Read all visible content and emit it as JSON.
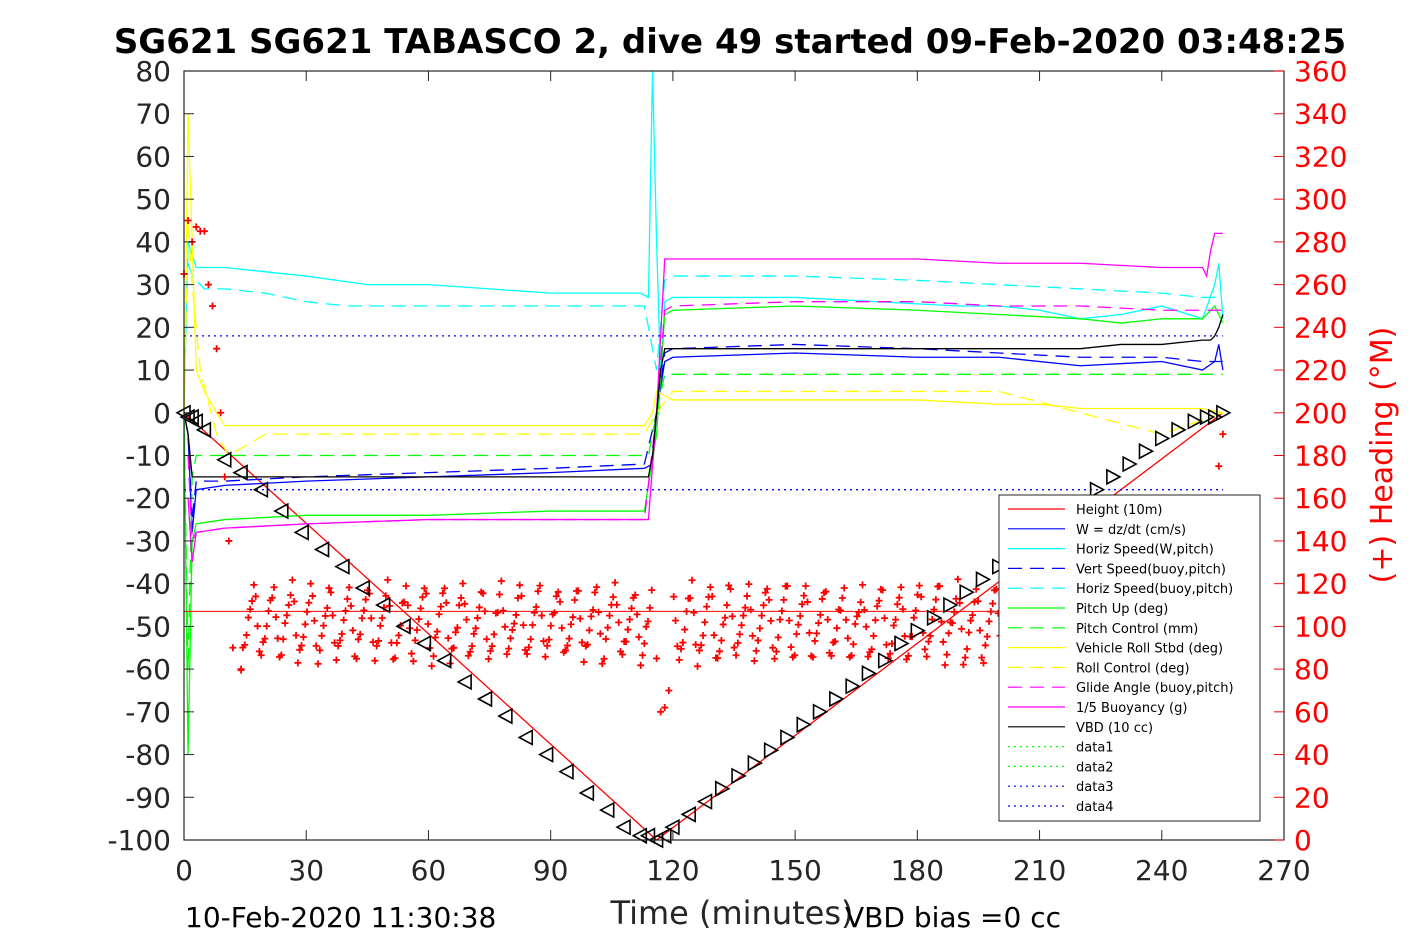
{
  "chart_data": {
    "type": "line",
    "title": "SG621 SG621 TABASCO 2, dive 49 started 09-Feb-2020 03:48:25",
    "xlabel": "Time (minutes)",
    "ylabel_right": "(+) Heading (°M)",
    "footer_left": "10-Feb-2020 11:30:38",
    "footer_right": "VBD bias =0 cc",
    "xlim": [
      0,
      270
    ],
    "ylim": [
      -100,
      80
    ],
    "ylim_right": [
      0,
      360
    ],
    "x_ticks": [
      "0",
      "30",
      "60",
      "90",
      "120",
      "150",
      "180",
      "210",
      "240",
      "270"
    ],
    "y_ticks": [
      "80",
      "70",
      "60",
      "50",
      "40",
      "30",
      "20",
      "10",
      "0",
      "-10",
      "-20",
      "-30",
      "-40",
      "-50",
      "-60",
      "-70",
      "-80",
      "-90",
      "-100"
    ],
    "y_ticks_right": [
      "360",
      "340",
      "320",
      "300",
      "280",
      "260",
      "240",
      "220",
      "200",
      "180",
      "160",
      "140",
      "120",
      "100",
      "80",
      "60",
      "40",
      "20",
      "0"
    ],
    "legend_position": "lower-right",
    "series": [
      {
        "name": "Height (10m)",
        "color": "#ff0000",
        "style": "solid",
        "x": [
          0,
          116,
          255
        ],
        "y": [
          0,
          -100,
          0
        ]
      },
      {
        "name": "W = dz/dt (cm/s)",
        "color": "#0000ff",
        "style": "solid",
        "x": [
          0,
          1,
          2,
          3,
          10,
          30,
          60,
          90,
          113,
          115,
          116,
          118,
          120,
          150,
          180,
          200,
          220,
          240,
          250,
          253,
          254,
          255
        ],
        "y": [
          0,
          -5,
          -28,
          -18,
          -17,
          -16,
          -15,
          -14,
          -13,
          -12,
          0,
          12,
          13,
          14,
          13,
          13,
          11,
          12,
          10,
          12,
          16,
          10
        ]
      },
      {
        "name": "Horiz Speed(W,pitch)",
        "color": "#00ffff",
        "style": "solid",
        "x": [
          0,
          1,
          2,
          3,
          5,
          10,
          20,
          30,
          45,
          60,
          75,
          90,
          100,
          112,
          114,
          115,
          116,
          117,
          118,
          120,
          130,
          150,
          170,
          190,
          200,
          210,
          220,
          230,
          240,
          250,
          253,
          254,
          255
        ],
        "y": [
          0,
          40,
          37,
          34,
          34,
          34,
          33,
          32,
          30,
          30,
          29,
          28,
          28,
          28,
          27,
          80,
          40,
          8,
          26,
          27,
          27,
          27,
          26,
          25,
          25,
          24,
          22,
          23,
          25,
          22,
          30,
          35,
          22
        ]
      },
      {
        "name": "Vert Speed(buoy,pitch)",
        "color": "#0000ff",
        "style": "dashed",
        "x": [
          1,
          2,
          3,
          10,
          30,
          60,
          90,
          113,
          116,
          118,
          120,
          150,
          180,
          200,
          220,
          240,
          250,
          255
        ],
        "y": [
          -5,
          -25,
          -16,
          -16,
          -15,
          -14,
          -13,
          -12,
          0,
          14,
          15,
          16,
          15,
          14,
          13,
          13,
          12,
          12
        ]
      },
      {
        "name": "Horiz Speed(buoy,pitch)",
        "color": "#00ffff",
        "style": "dashed",
        "x": [
          1,
          2,
          5,
          10,
          20,
          30,
          40,
          60,
          90,
          113,
          116,
          118,
          120,
          150,
          180,
          200,
          220,
          240,
          250,
          255
        ],
        "y": [
          35,
          32,
          29,
          29,
          28,
          26,
          25,
          25,
          25,
          25,
          10,
          31,
          32,
          32,
          31,
          30,
          29,
          28,
          27,
          27
        ]
      },
      {
        "name": "Pitch Up (deg)",
        "color": "#00ff00",
        "style": "solid",
        "x": [
          0,
          1,
          2,
          3,
          10,
          30,
          60,
          90,
          113,
          116,
          118,
          120,
          150,
          180,
          200,
          220,
          230,
          240,
          250,
          253,
          255
        ],
        "y": [
          0,
          -80,
          -30,
          -26,
          -25,
          -24,
          -24,
          -23,
          -23,
          -5,
          23,
          24,
          25,
          24,
          23,
          22,
          21,
          22,
          22,
          25,
          21
        ]
      },
      {
        "name": "Pitch Control (mm)",
        "color": "#00ff00",
        "style": "dashed",
        "x": [
          0,
          1,
          2,
          3,
          114,
          116,
          118,
          255
        ],
        "y": [
          0,
          -60,
          -15,
          -10,
          -10,
          0,
          9,
          9
        ]
      },
      {
        "name": "Vehicle Roll Stbd (deg)",
        "color": "#ffff00",
        "style": "solid",
        "x": [
          0,
          1,
          2,
          3,
          5,
          8,
          10,
          20,
          30,
          60,
          90,
          113,
          115,
          116,
          118,
          120,
          150,
          180,
          200,
          210,
          220,
          240,
          250,
          255
        ],
        "y": [
          0,
          70,
          40,
          10,
          5,
          0,
          -3,
          -3,
          -3,
          -3,
          -3,
          -3,
          0,
          5,
          4,
          3,
          3,
          3,
          2,
          2,
          1,
          1,
          1,
          0
        ]
      },
      {
        "name": "Roll Control (deg)",
        "color": "#ffff00",
        "style": "dashed",
        "x": [
          0,
          1,
          2,
          4,
          8,
          11,
          20,
          40,
          60,
          80,
          100,
          113,
          116,
          120,
          140,
          160,
          180,
          200,
          220,
          240,
          255
        ],
        "y": [
          0,
          45,
          30,
          10,
          -5,
          -10,
          -5,
          -5,
          -5,
          -5,
          -5,
          -5,
          0,
          5,
          5,
          5,
          5,
          5,
          0,
          -5,
          0
        ]
      },
      {
        "name": "Glide Angle (buoy,pitch)",
        "color": "#ff00ff",
        "style": "dashed",
        "x": [
          1,
          2,
          3,
          10,
          30,
          60,
          90,
          113,
          116,
          118,
          120,
          150,
          180,
          200,
          220,
          240,
          250,
          255
        ],
        "y": [
          -10,
          -30,
          -28,
          -27,
          -26,
          -25,
          -25,
          -25,
          0,
          24,
          25,
          26,
          26,
          25,
          25,
          24,
          24,
          24
        ]
      },
      {
        "name": "1/5 Buoyancy (g)",
        "color": "#ff00ff",
        "style": "solid",
        "x": [
          1,
          2,
          3,
          10,
          30,
          60,
          90,
          113,
          114,
          116,
          118,
          120,
          150,
          180,
          200,
          220,
          240,
          250,
          251,
          252,
          253,
          255
        ],
        "y": [
          -20,
          -35,
          -28,
          -27,
          -26,
          -25,
          -25,
          -25,
          -25,
          0,
          36,
          36,
          36,
          36,
          35,
          35,
          34,
          34,
          32,
          38,
          42,
          42
        ]
      },
      {
        "name": "VBD (10 cc)",
        "color": "#000000",
        "style": "solid",
        "x": [
          0,
          1,
          2,
          114,
          115,
          116,
          117,
          118,
          220,
          230,
          240,
          250,
          252,
          253,
          254,
          255
        ],
        "y": [
          0,
          -5,
          -15,
          -15,
          -10,
          0,
          10,
          15,
          15,
          16,
          16,
          17,
          17,
          18,
          20,
          23
        ]
      },
      {
        "name": "data1",
        "color": "#00ff00",
        "style": "dotted",
        "x": [],
        "y": []
      },
      {
        "name": "data2",
        "color": "#00ff00",
        "style": "dotted",
        "x": [],
        "y": []
      },
      {
        "name": "data3",
        "color": "#0000ff",
        "style": "dotted",
        "x": [
          0,
          255
        ],
        "y": [
          18,
          18
        ]
      },
      {
        "name": "data4",
        "color": "#0000ff",
        "style": "dotted",
        "x": [
          0,
          255
        ],
        "y": [
          -18,
          -18
        ]
      }
    ],
    "reference_lines": [
      {
        "axis": "left",
        "y": -46.5,
        "x": [
          0,
          255
        ],
        "color": "#ff0000",
        "style": "solid"
      }
    ],
    "depth_markers": {
      "color": "#000000",
      "marker": "triangle",
      "x": [
        0,
        1,
        2,
        3,
        5,
        10,
        14,
        19,
        24,
        29,
        34,
        39,
        44,
        49,
        54,
        59,
        64,
        69,
        74,
        79,
        84,
        89,
        94,
        99,
        104,
        108,
        112,
        114,
        116,
        118,
        120,
        124,
        128,
        132,
        136,
        140,
        144,
        148,
        152,
        156,
        160,
        164,
        168,
        172,
        176,
        180,
        184,
        188,
        192,
        196,
        200,
        204,
        208,
        212,
        216,
        220,
        224,
        228,
        232,
        236,
        240,
        244,
        248,
        251,
        253,
        255
      ],
      "y": [
        0,
        -1,
        -1,
        -2,
        -4,
        -11,
        -14,
        -18,
        -23,
        -28,
        -32,
        -36,
        -41,
        -45,
        -50,
        -54,
        -58,
        -63,
        -67,
        -71,
        -76,
        -80,
        -84,
        -89,
        -93,
        -97,
        -99,
        -99,
        -100,
        -99,
        -97,
        -94,
        -91,
        -88,
        -85,
        -82,
        -79,
        -76,
        -73,
        -70,
        -67,
        -64,
        -61,
        -58,
        -54,
        -51,
        -48,
        -45,
        -42,
        -39,
        -36,
        -33,
        -30,
        -27,
        -24,
        -21,
        -18,
        -15,
        -12,
        -9,
        -6,
        -4,
        -2,
        -1,
        -1,
        0
      ]
    },
    "heading": {
      "axis": "right",
      "color": "#ff0000",
      "marker": "plus",
      "start_x": 0,
      "end_x": 255,
      "descent_start_points": [
        [
          0,
          265
        ],
        [
          1,
          290
        ],
        [
          2,
          280
        ],
        [
          3,
          287
        ],
        [
          4,
          285
        ],
        [
          5,
          285
        ],
        [
          6,
          260
        ],
        [
          7,
          250
        ],
        [
          8,
          230
        ],
        [
          9,
          200
        ],
        [
          10,
          170
        ],
        [
          11,
          140
        ],
        [
          12,
          90
        ],
        [
          14,
          80
        ]
      ],
      "range_main": [
        70,
        120
      ],
      "bottom_points": [
        [
          116,
          85
        ],
        [
          117,
          60
        ],
        [
          118,
          62
        ],
        [
          119,
          70
        ]
      ],
      "surface_points": [
        [
          253,
          160
        ],
        [
          254,
          175
        ],
        [
          255,
          190
        ]
      ]
    }
  }
}
